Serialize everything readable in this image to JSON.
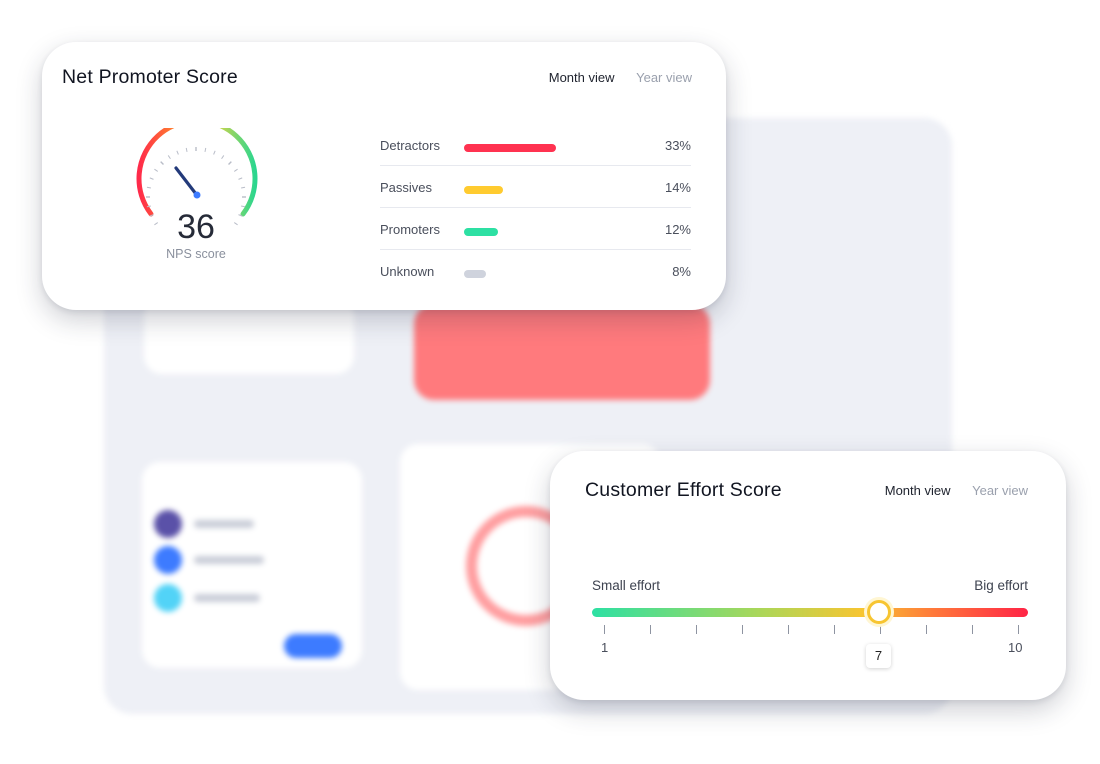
{
  "nps": {
    "title": "Net Promoter Score",
    "views": {
      "active": "Month view",
      "inactive": "Year view"
    },
    "gauge": {
      "value": "36",
      "label": "NPS score"
    },
    "rows": [
      {
        "label": "Detractors",
        "percent": "33%",
        "fraction": 0.33,
        "color": "#ff3250"
      },
      {
        "label": "Passives",
        "percent": "14%",
        "fraction": 0.14,
        "color": "#ffcb2f"
      },
      {
        "label": "Promoters",
        "percent": "12%",
        "fraction": 0.12,
        "color": "#2de0a3"
      },
      {
        "label": "Unknown",
        "percent": "8%",
        "fraction": 0.08,
        "color": "#cfd3dd"
      }
    ]
  },
  "ces": {
    "title": "Customer Effort Score",
    "views": {
      "active": "Month view",
      "inactive": "Year view"
    },
    "small_label": "Small effort",
    "big_label": "Big effort",
    "min": "1",
    "max": "10",
    "value": "7"
  }
}
